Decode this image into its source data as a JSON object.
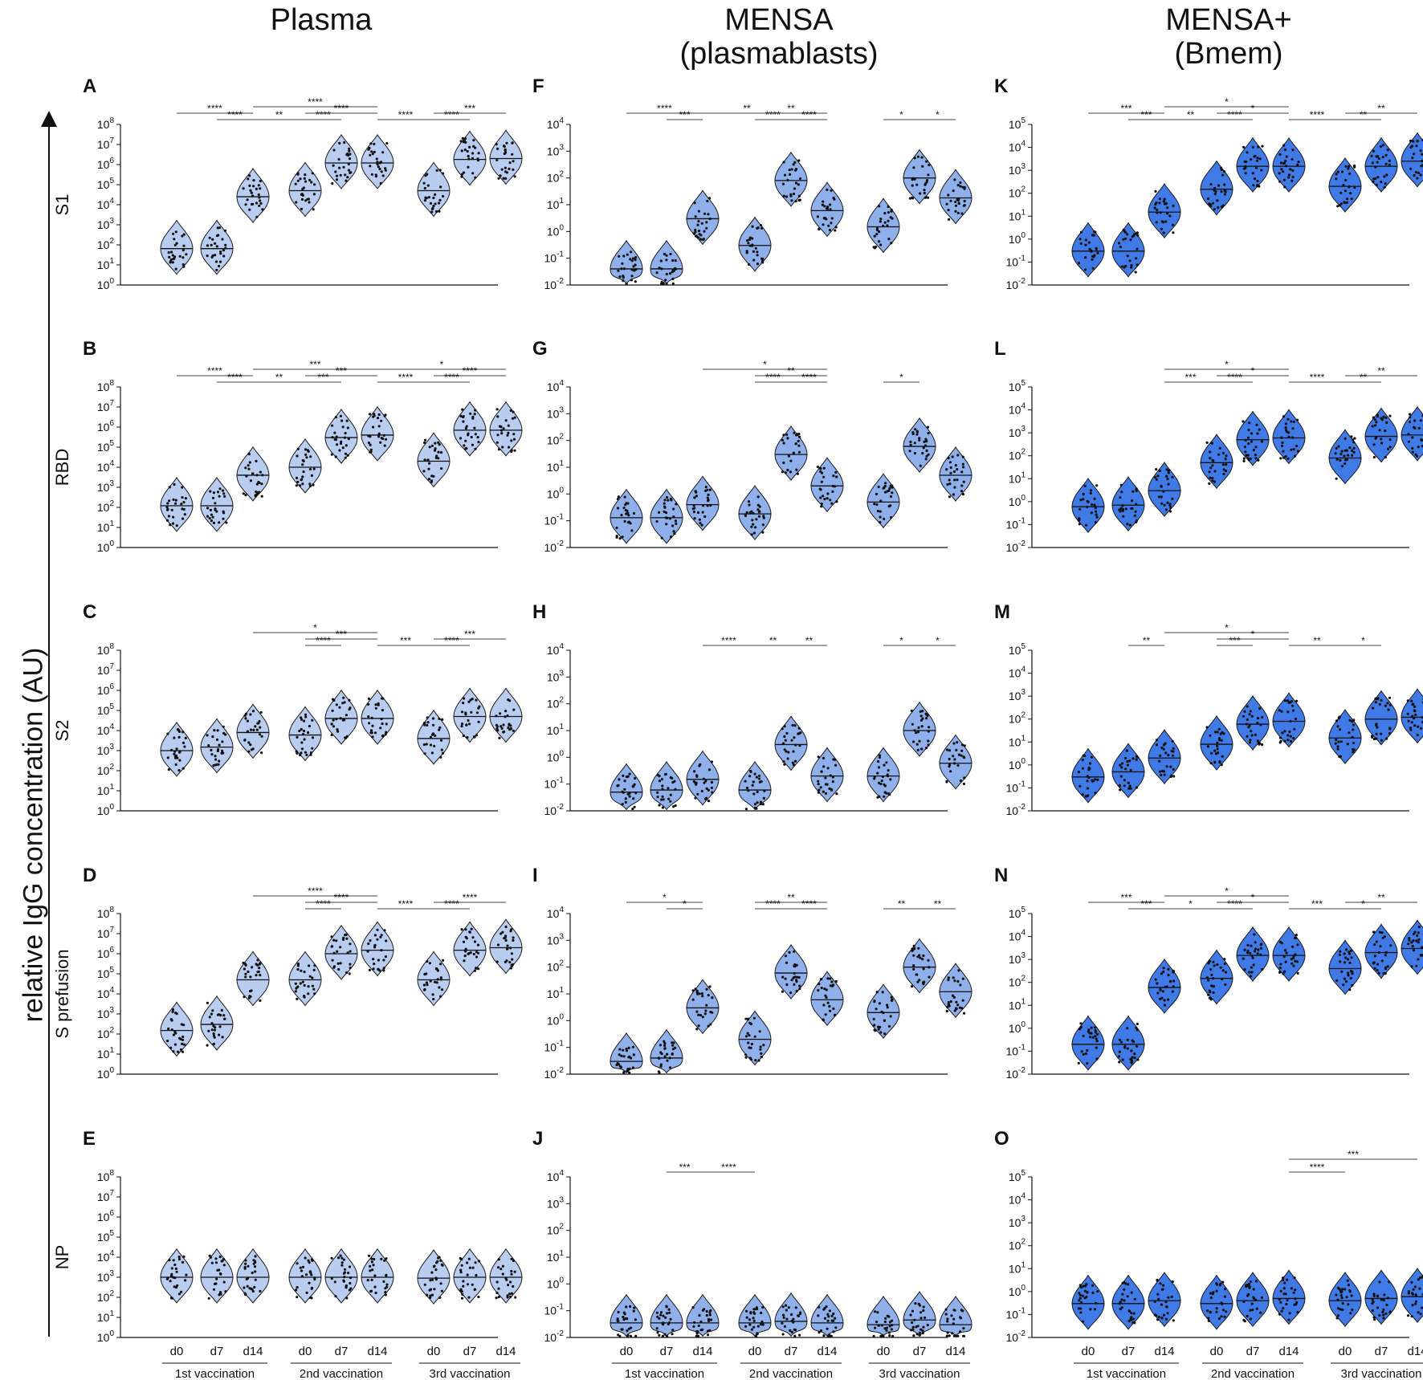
{
  "column_titles": [
    "Plasma",
    "MENSA\n(plasmablasts)",
    "MENSA+\n(Bmem)"
  ],
  "y_axis_title": "relative IgG concentration (AU)",
  "row_labels": [
    "S1",
    "RBD",
    "S2",
    "S prefusion",
    "NP"
  ],
  "x_group_labels": [
    "1st vaccination",
    "2nd vaccination",
    "3rd vaccination"
  ],
  "x_day_labels": [
    "d0",
    "d7",
    "d14"
  ],
  "colors": {
    "light": "#b9cdf0",
    "mid": "#8fb0ea",
    "dark": "#3f7ae6",
    "outline": "#1a1a1a"
  },
  "chart_data": [
    {
      "panel": "A",
      "type": "violin",
      "antigen": "S1",
      "column": "Plasma",
      "yscale": "log10",
      "ylim": [
        1,
        100000000
      ],
      "yticks": [
        "10^0",
        "10^1",
        "10^2",
        "10^3",
        "10^4",
        "10^5",
        "10^6",
        "10^7",
        "10^8"
      ],
      "medians": [
        65,
        65,
        25000,
        50000,
        1200000,
        1200000,
        50000,
        1800000,
        2000000
      ],
      "significance": [
        {
          "from": 0,
          "to": 2,
          "label": "****"
        },
        {
          "from": 1,
          "to": 2,
          "label": "****"
        },
        {
          "from": 2,
          "to": 3,
          "label": "**"
        },
        {
          "from": 2,
          "to": 5,
          "label": "****"
        },
        {
          "from": 3,
          "to": 4,
          "label": "****"
        },
        {
          "from": 3,
          "to": 5,
          "label": "****"
        },
        {
          "from": 5,
          "to": 6,
          "label": "****"
        },
        {
          "from": 6,
          "to": 7,
          "label": "****"
        },
        {
          "from": 6,
          "to": 8,
          "label": "***"
        }
      ]
    },
    {
      "panel": "B",
      "type": "violin",
      "antigen": "RBD",
      "column": "Plasma",
      "yscale": "log10",
      "ylim": [
        1,
        100000000
      ],
      "yticks": [
        "10^0",
        "10^1",
        "10^2",
        "10^3",
        "10^4",
        "10^5",
        "10^6",
        "10^7",
        "10^8"
      ],
      "medians": [
        120,
        120,
        4000,
        10000,
        300000,
        400000,
        20000,
        700000,
        700000
      ],
      "significance": [
        {
          "from": 0,
          "to": 2,
          "label": "****"
        },
        {
          "from": 1,
          "to": 2,
          "label": "****"
        },
        {
          "from": 2,
          "to": 3,
          "label": "**"
        },
        {
          "from": 2,
          "to": 5,
          "label": "***"
        },
        {
          "from": 3,
          "to": 4,
          "label": "***"
        },
        {
          "from": 3,
          "to": 5,
          "label": "***"
        },
        {
          "from": 5,
          "to": 6,
          "label": "****"
        },
        {
          "from": 5,
          "to": 8,
          "label": "*"
        },
        {
          "from": 6,
          "to": 7,
          "label": "****"
        },
        {
          "from": 6,
          "to": 8,
          "label": "****"
        }
      ]
    },
    {
      "panel": "C",
      "type": "violin",
      "antigen": "S2",
      "column": "Plasma",
      "yscale": "log10",
      "ylim": [
        1,
        100000000
      ],
      "yticks": [
        "10^0",
        "10^1",
        "10^2",
        "10^3",
        "10^4",
        "10^5",
        "10^6",
        "10^7",
        "10^8"
      ],
      "medians": [
        1000,
        1500,
        8000,
        6000,
        40000,
        40000,
        4000,
        50000,
        50000
      ],
      "significance": [
        {
          "from": 2,
          "to": 5,
          "label": "*"
        },
        {
          "from": 3,
          "to": 4,
          "label": "****"
        },
        {
          "from": 3,
          "to": 5,
          "label": "***"
        },
        {
          "from": 5,
          "to": 6,
          "label": "***"
        },
        {
          "from": 6,
          "to": 7,
          "label": "****"
        },
        {
          "from": 6,
          "to": 8,
          "label": "***"
        }
      ]
    },
    {
      "panel": "D",
      "type": "violin",
      "antigen": "S prefusion",
      "column": "Plasma",
      "yscale": "log10",
      "ylim": [
        1,
        100000000
      ],
      "yticks": [
        "10^0",
        "10^1",
        "10^2",
        "10^3",
        "10^4",
        "10^5",
        "10^6",
        "10^7",
        "10^8"
      ],
      "medians": [
        150,
        300,
        50000,
        50000,
        1000000,
        1500000,
        50000,
        1500000,
        2000000
      ],
      "significance": [
        {
          "from": 2,
          "to": 5,
          "label": "****"
        },
        {
          "from": 3,
          "to": 4,
          "label": "****"
        },
        {
          "from": 3,
          "to": 5,
          "label": "****"
        },
        {
          "from": 5,
          "to": 6,
          "label": "****"
        },
        {
          "from": 6,
          "to": 7,
          "label": "****"
        },
        {
          "from": 6,
          "to": 8,
          "label": "****"
        }
      ]
    },
    {
      "panel": "E",
      "type": "violin",
      "antigen": "NP",
      "column": "Plasma",
      "yscale": "log10",
      "ylim": [
        1,
        100000000
      ],
      "yticks": [
        "10^0",
        "10^1",
        "10^2",
        "10^3",
        "10^4",
        "10^5",
        "10^6",
        "10^7",
        "10^8"
      ],
      "medians": [
        1000,
        1000,
        1000,
        1000,
        1000,
        1000,
        900,
        1000,
        1000
      ],
      "significance": []
    },
    {
      "panel": "F",
      "type": "violin",
      "antigen": "S1",
      "column": "MENSA (plasmablasts)",
      "yscale": "log10",
      "ylim": [
        0.01,
        10000
      ],
      "yticks": [
        "10^-2",
        "10^-1",
        "10^0",
        "10^1",
        "10^2",
        "10^3",
        "10^4"
      ],
      "medians": [
        0.04,
        0.04,
        3,
        0.3,
        80,
        6,
        1.5,
        100,
        18
      ],
      "significance": [
        {
          "from": 0,
          "to": 2,
          "label": "****"
        },
        {
          "from": 1,
          "to": 2,
          "label": "***"
        },
        {
          "from": 2,
          "to": 4,
          "label": "**"
        },
        {
          "from": 3,
          "to": 4,
          "label": "****"
        },
        {
          "from": 3,
          "to": 5,
          "label": "**"
        },
        {
          "from": 4,
          "to": 5,
          "label": "****"
        },
        {
          "from": 6,
          "to": 7,
          "label": "*"
        },
        {
          "from": 7,
          "to": 8,
          "label": "*"
        }
      ]
    },
    {
      "panel": "G",
      "type": "violin",
      "antigen": "RBD",
      "column": "MENSA (plasmablasts)",
      "yscale": "log10",
      "ylim": [
        0.01,
        10000
      ],
      "yticks": [
        "10^-2",
        "10^-1",
        "10^0",
        "10^1",
        "10^2",
        "10^3",
        "10^4"
      ],
      "medians": [
        0.13,
        0.13,
        0.4,
        0.18,
        30,
        2,
        0.5,
        60,
        5
      ],
      "significance": [
        {
          "from": 2,
          "to": 5,
          "label": "*"
        },
        {
          "from": 3,
          "to": 4,
          "label": "****"
        },
        {
          "from": 3,
          "to": 5,
          "label": "**"
        },
        {
          "from": 4,
          "to": 5,
          "label": "****"
        },
        {
          "from": 6,
          "to": 7,
          "label": "*"
        }
      ]
    },
    {
      "panel": "H",
      "type": "violin",
      "antigen": "S2",
      "column": "MENSA (plasmablasts)",
      "yscale": "log10",
      "ylim": [
        0.01,
        10000
      ],
      "yticks": [
        "10^-2",
        "10^-1",
        "10^0",
        "10^1",
        "10^2",
        "10^3",
        "10^4"
      ],
      "medians": [
        0.05,
        0.06,
        0.15,
        0.06,
        3,
        0.2,
        0.2,
        10,
        0.6
      ],
      "significance": [
        {
          "from": 2,
          "to": 3,
          "label": "****"
        },
        {
          "from": 3,
          "to": 4,
          "label": "**"
        },
        {
          "from": 4,
          "to": 5,
          "label": "**"
        },
        {
          "from": 6,
          "to": 7,
          "label": "*"
        },
        {
          "from": 7,
          "to": 8,
          "label": "*"
        }
      ]
    },
    {
      "panel": "I",
      "type": "violin",
      "antigen": "S prefusion",
      "column": "MENSA (plasmablasts)",
      "yscale": "log10",
      "ylim": [
        0.01,
        10000
      ],
      "yticks": [
        "10^-2",
        "10^-1",
        "10^0",
        "10^1",
        "10^2",
        "10^3",
        "10^4"
      ],
      "medians": [
        0.03,
        0.04,
        3,
        0.2,
        60,
        6,
        2,
        100,
        12
      ],
      "significance": [
        {
          "from": 0,
          "to": 2,
          "label": "*"
        },
        {
          "from": 1,
          "to": 2,
          "label": "*"
        },
        {
          "from": 3,
          "to": 4,
          "label": "****"
        },
        {
          "from": 3,
          "to": 5,
          "label": "**"
        },
        {
          "from": 4,
          "to": 5,
          "label": "****"
        },
        {
          "from": 6,
          "to": 7,
          "label": "**"
        },
        {
          "from": 7,
          "to": 8,
          "label": "**"
        }
      ]
    },
    {
      "panel": "J",
      "type": "violin",
      "antigen": "NP",
      "column": "MENSA (plasmablasts)",
      "yscale": "log10",
      "ylim": [
        0.01,
        10000
      ],
      "yticks": [
        "10^-2",
        "10^-1",
        "10^0",
        "10^1",
        "10^2",
        "10^3",
        "10^4"
      ],
      "medians": [
        0.035,
        0.035,
        0.035,
        0.035,
        0.04,
        0.035,
        0.03,
        0.045,
        0.03
      ],
      "significance": [
        {
          "from": 1,
          "to": 2,
          "label": "***"
        },
        {
          "from": 2,
          "to": 3,
          "label": "****"
        }
      ]
    },
    {
      "panel": "K",
      "type": "violin",
      "antigen": "S1",
      "column": "MENSA+ (Bmem)",
      "yscale": "log10",
      "ylim": [
        0.01,
        100000
      ],
      "yticks": [
        "10^-2",
        "10^-1",
        "10^0",
        "10^1",
        "10^2",
        "10^3",
        "10^4",
        "10^5"
      ],
      "medians": [
        0.3,
        0.3,
        15,
        150,
        1500,
        1500,
        200,
        1500,
        2500
      ],
      "significance": [
        {
          "from": 0,
          "to": 2,
          "label": "***"
        },
        {
          "from": 1,
          "to": 2,
          "label": "***"
        },
        {
          "from": 2,
          "to": 3,
          "label": "**"
        },
        {
          "from": 2,
          "to": 5,
          "label": "*"
        },
        {
          "from": 3,
          "to": 4,
          "label": "****"
        },
        {
          "from": 3,
          "to": 5,
          "label": "*"
        },
        {
          "from": 5,
          "to": 6,
          "label": "****"
        },
        {
          "from": 6,
          "to": 7,
          "label": "**"
        },
        {
          "from": 6,
          "to": 8,
          "label": "**"
        }
      ]
    },
    {
      "panel": "L",
      "type": "violin",
      "antigen": "RBD",
      "column": "MENSA+ (Bmem)",
      "yscale": "log10",
      "ylim": [
        0.01,
        100000
      ],
      "yticks": [
        "10^-2",
        "10^-1",
        "10^0",
        "10^1",
        "10^2",
        "10^3",
        "10^4",
        "10^5"
      ],
      "medians": [
        0.6,
        0.7,
        3,
        50,
        500,
        600,
        80,
        700,
        800
      ],
      "significance": [
        {
          "from": 2,
          "to": 3,
          "label": "***"
        },
        {
          "from": 2,
          "to": 5,
          "label": "*"
        },
        {
          "from": 3,
          "to": 4,
          "label": "****"
        },
        {
          "from": 3,
          "to": 5,
          "label": "*"
        },
        {
          "from": 5,
          "to": 6,
          "label": "****"
        },
        {
          "from": 6,
          "to": 7,
          "label": "**"
        },
        {
          "from": 6,
          "to": 8,
          "label": "**"
        }
      ]
    },
    {
      "panel": "M",
      "type": "violin",
      "antigen": "S2",
      "column": "MENSA+ (Bmem)",
      "yscale": "log10",
      "ylim": [
        0.01,
        100000
      ],
      "yticks": [
        "10^-2",
        "10^-1",
        "10^0",
        "10^1",
        "10^2",
        "10^3",
        "10^4",
        "10^5"
      ],
      "medians": [
        0.3,
        0.5,
        2,
        8,
        60,
        80,
        15,
        100,
        120
      ],
      "significance": [
        {
          "from": 1,
          "to": 2,
          "label": "**"
        },
        {
          "from": 2,
          "to": 5,
          "label": "*"
        },
        {
          "from": 3,
          "to": 4,
          "label": "***"
        },
        {
          "from": 3,
          "to": 5,
          "label": "*"
        },
        {
          "from": 5,
          "to": 6,
          "label": "**"
        },
        {
          "from": 6,
          "to": 7,
          "label": "*"
        }
      ]
    },
    {
      "panel": "N",
      "type": "violin",
      "antigen": "S prefusion",
      "column": "MENSA+ (Bmem)",
      "yscale": "log10",
      "ylim": [
        0.01,
        100000
      ],
      "yticks": [
        "10^-2",
        "10^-1",
        "10^0",
        "10^1",
        "10^2",
        "10^3",
        "10^4",
        "10^5"
      ],
      "medians": [
        0.2,
        0.2,
        60,
        150,
        1500,
        1500,
        400,
        2000,
        3000
      ],
      "significance": [
        {
          "from": 0,
          "to": 2,
          "label": "***"
        },
        {
          "from": 1,
          "to": 2,
          "label": "***"
        },
        {
          "from": 2,
          "to": 3,
          "label": "*"
        },
        {
          "from": 2,
          "to": 5,
          "label": "*"
        },
        {
          "from": 3,
          "to": 4,
          "label": "****"
        },
        {
          "from": 3,
          "to": 5,
          "label": "*"
        },
        {
          "from": 5,
          "to": 6,
          "label": "***"
        },
        {
          "from": 6,
          "to": 7,
          "label": "*"
        },
        {
          "from": 6,
          "to": 8,
          "label": "**"
        }
      ]
    },
    {
      "panel": "O",
      "type": "violin",
      "antigen": "NP",
      "column": "MENSA+ (Bmem)",
      "yscale": "log10",
      "ylim": [
        0.01,
        100000
      ],
      "yticks": [
        "10^-2",
        "10^-1",
        "10^0",
        "10^1",
        "10^2",
        "10^3",
        "10^4",
        "10^5"
      ],
      "medians": [
        0.3,
        0.3,
        0.4,
        0.3,
        0.4,
        0.5,
        0.4,
        0.5,
        0.6
      ],
      "significance": [
        {
          "from": 5,
          "to": 6,
          "label": "****"
        },
        {
          "from": 5,
          "to": 8,
          "label": "***"
        }
      ]
    }
  ]
}
